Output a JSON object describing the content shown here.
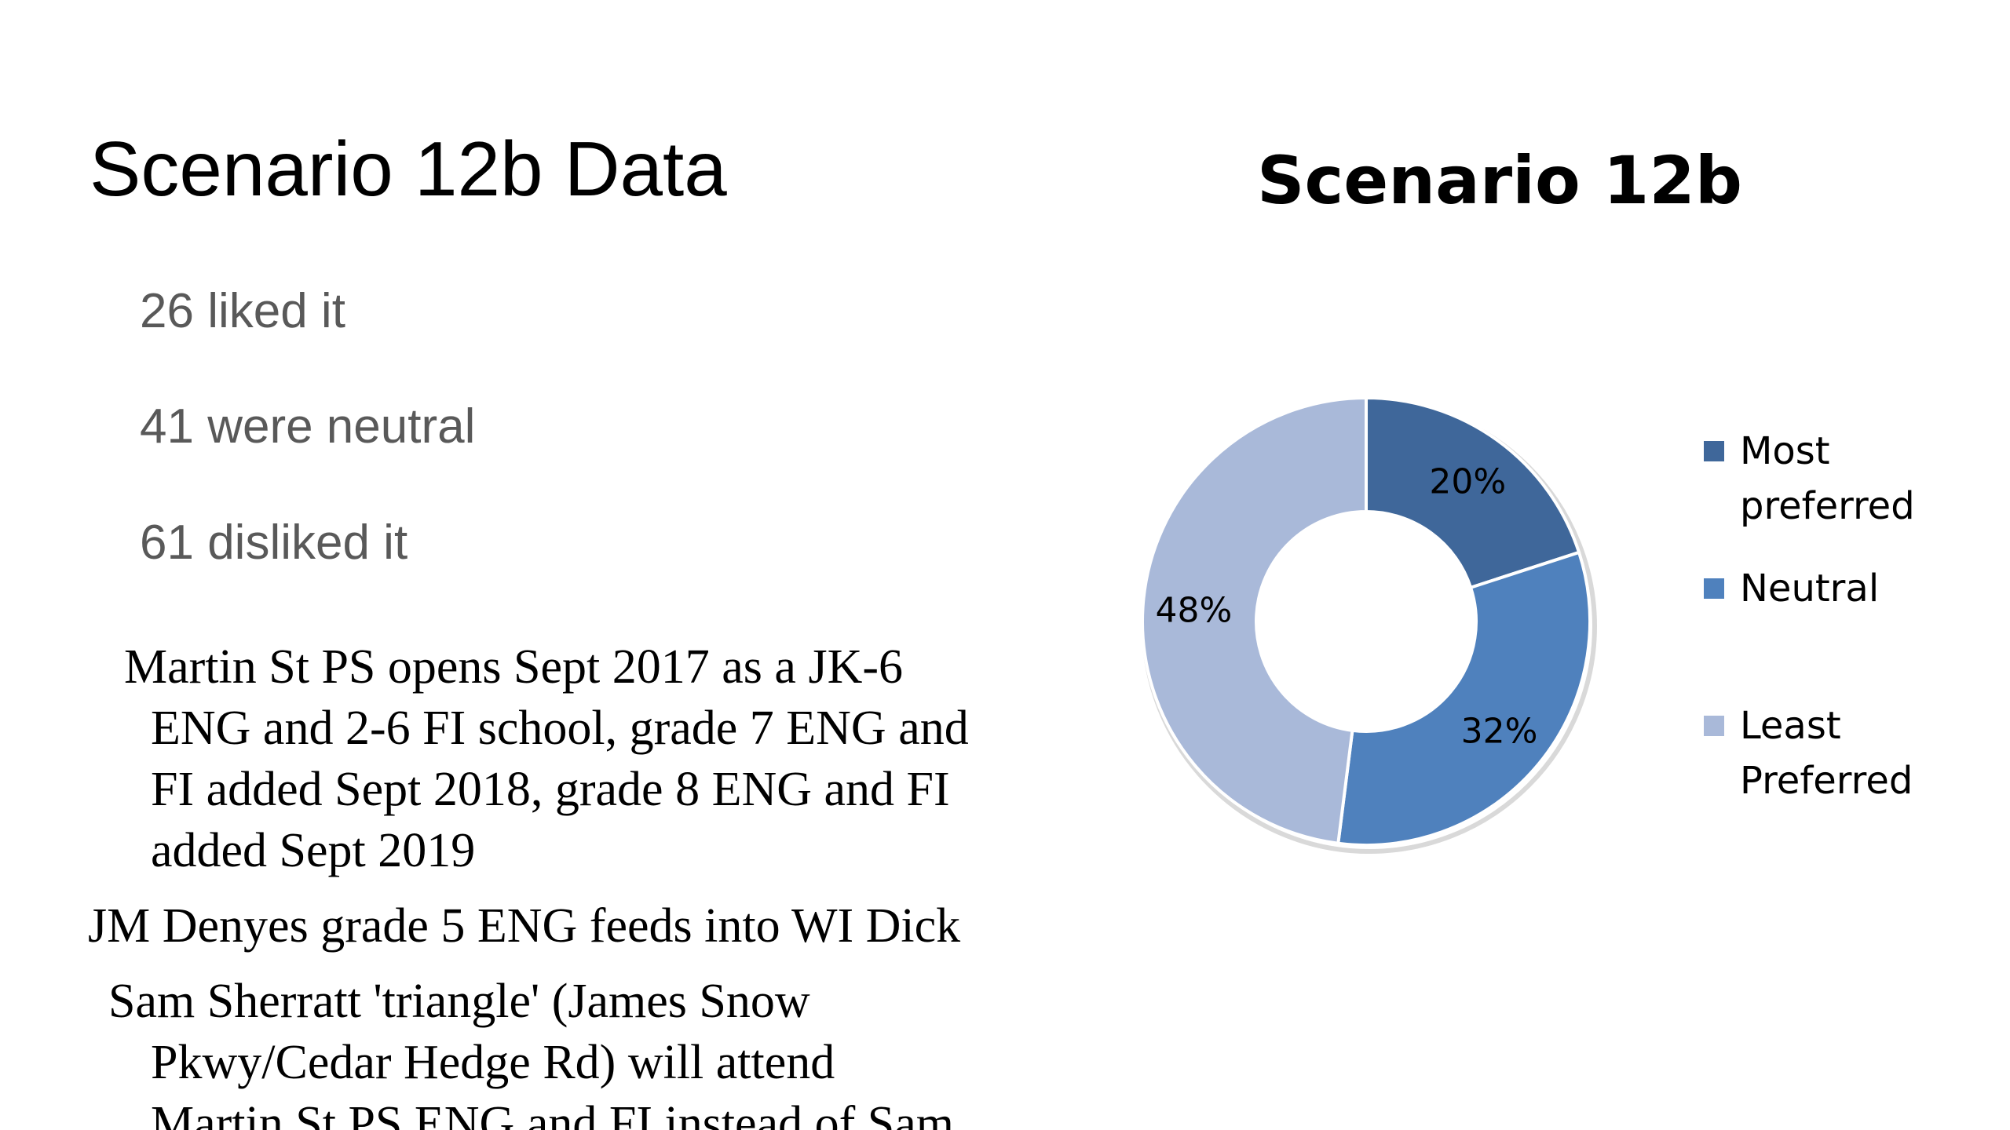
{
  "slide": {
    "title": "Scenario 12b Data",
    "stats": [
      "26 liked it",
      "41 were neutral",
      "61 disliked it"
    ],
    "paragraph1_lines": [
      "Martin St PS opens Sept 2017 as a JK-6",
      "ENG and 2-6 FI school, grade 7 ENG and",
      "FI added Sept 2018, grade 8 ENG and FI",
      "added Sept 2019"
    ],
    "paragraph2": "JM Denyes grade 5 ENG feeds into WI Dick",
    "paragraph3_lines": [
      "Sam Sherratt 'triangle' (James Snow",
      "Pkwy/Cedar Hedge Rd) will attend",
      "Martin St PS ENG and FI instead of Sam"
    ]
  },
  "chart_data": {
    "type": "pie",
    "variant": "donut",
    "title": "Scenario 12b",
    "categories": [
      "Most preferred",
      "Neutral",
      "Least Preferred"
    ],
    "values": [
      20,
      32,
      48
    ],
    "labels": [
      "20%",
      "32%",
      "48%"
    ],
    "colors": [
      "#3f679a",
      "#4f81bd",
      "#a9b9d9"
    ],
    "legend_position": "right",
    "legend": [
      {
        "label_lines": [
          "Most",
          "preferred"
        ]
      },
      {
        "label_lines": [
          "Neutral"
        ]
      },
      {
        "label_lines": [
          "Least",
          "Preferred"
        ]
      }
    ]
  }
}
